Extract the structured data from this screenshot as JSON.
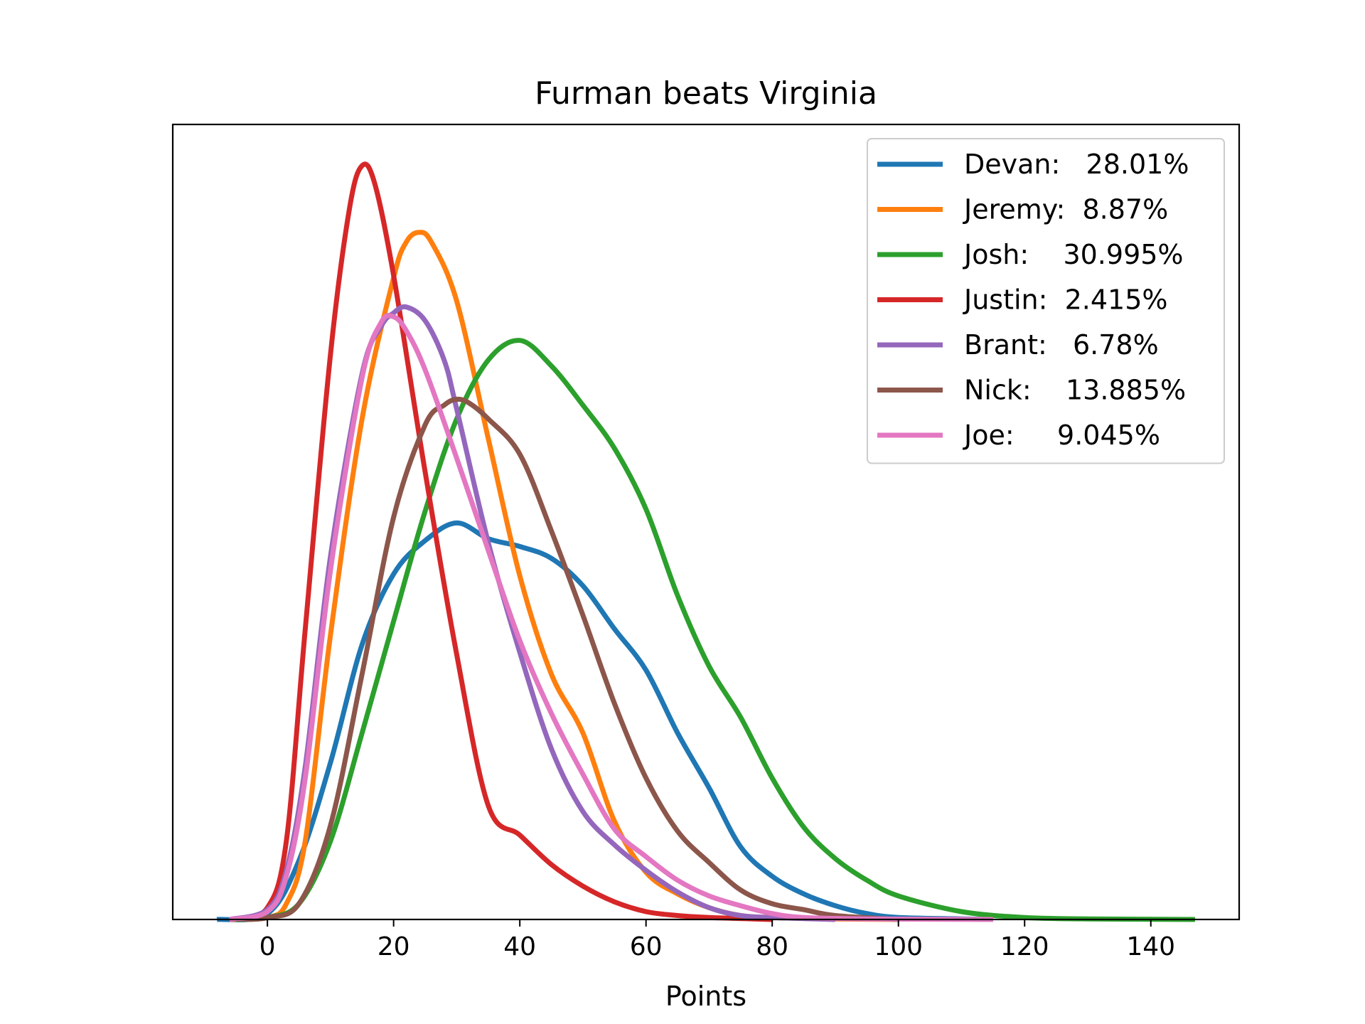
{
  "chart_data": {
    "type": "line",
    "title": "Furman beats Virginia",
    "xlabel": "Points",
    "ylabel": "",
    "xlim": [
      -15,
      154
    ],
    "ylim": [
      0,
      0.0405
    ],
    "x_ticks": [
      "0",
      "20",
      "40",
      "60",
      "80",
      "100",
      "120",
      "140"
    ],
    "y_ticks_shown": false,
    "grid": false,
    "legend_position": "top-right",
    "series": [
      {
        "name": "Devan:   28.01%",
        "color": "#1f77b4",
        "x": [
          -8,
          0,
          5,
          10,
          15,
          20,
          25,
          30,
          35,
          40,
          45,
          50,
          55,
          60,
          65,
          70,
          75,
          80,
          85,
          90,
          95,
          100,
          110,
          115
        ],
        "y": [
          0,
          0.0003,
          0.003,
          0.008,
          0.014,
          0.0176,
          0.0193,
          0.0202,
          0.0194,
          0.019,
          0.0184,
          0.017,
          0.0148,
          0.0127,
          0.0095,
          0.0067,
          0.0037,
          0.0022,
          0.0013,
          0.0007,
          0.0003,
          0.0001,
          3e-05,
          0
        ]
      },
      {
        "name": "Jeremy:  8.87%",
        "color": "#ff7f0e",
        "x": [
          -6,
          0,
          3,
          6,
          10,
          15,
          20,
          22,
          24,
          26,
          30,
          35,
          40,
          45,
          50,
          55,
          60,
          65,
          70,
          75,
          80,
          90,
          100
        ],
        "y": [
          0,
          0.0001,
          0.0008,
          0.004,
          0.0145,
          0.0255,
          0.0327,
          0.0345,
          0.035,
          0.0345,
          0.0315,
          0.0245,
          0.0175,
          0.0125,
          0.0095,
          0.005,
          0.0024,
          0.0013,
          0.0006,
          0.0002,
          0.0001,
          3e-05,
          0
        ]
      },
      {
        "name": "Josh:    30.995%",
        "color": "#2ca02c",
        "x": [
          -5,
          0,
          5,
          10,
          15,
          20,
          25,
          30,
          35,
          40,
          45,
          50,
          55,
          60,
          65,
          70,
          75,
          80,
          85,
          90,
          95,
          100,
          110,
          120,
          130,
          147
        ],
        "y": [
          0,
          0.0001,
          0.0008,
          0.004,
          0.0095,
          0.0152,
          0.0208,
          0.0255,
          0.0285,
          0.0295,
          0.0282,
          0.0262,
          0.024,
          0.0209,
          0.0165,
          0.0129,
          0.0103,
          0.0072,
          0.0047,
          0.0031,
          0.002,
          0.0012,
          0.0004,
          0.0001,
          3e-05,
          0
        ]
      },
      {
        "name": "Justin:  2.415%",
        "color": "#d62728",
        "x": [
          -5,
          0,
          3,
          6,
          10,
          13,
          15,
          17,
          20,
          25,
          30,
          35,
          40,
          45,
          50,
          55,
          60,
          65,
          70,
          80
        ],
        "y": [
          0,
          0.0006,
          0.004,
          0.0148,
          0.0288,
          0.0362,
          0.0384,
          0.0375,
          0.0328,
          0.0228,
          0.0135,
          0.0058,
          0.0043,
          0.0028,
          0.0017,
          0.0009,
          0.0004,
          0.0002,
          0.0001,
          0
        ]
      },
      {
        "name": "Brant:   6.78%",
        "color": "#9467bd",
        "x": [
          -6,
          0,
          3,
          6,
          10,
          15,
          18,
          20,
          22,
          25,
          28,
          30,
          35,
          40,
          45,
          50,
          55,
          60,
          65,
          70,
          75,
          80,
          90
        ],
        "y": [
          0,
          0.0005,
          0.0025,
          0.0078,
          0.0185,
          0.0278,
          0.0302,
          0.0309,
          0.0312,
          0.0305,
          0.0285,
          0.026,
          0.0192,
          0.0136,
          0.0087,
          0.0055,
          0.0038,
          0.0025,
          0.0014,
          0.0006,
          0.0002,
          0.0001,
          0
        ]
      },
      {
        "name": "Nick:    13.885%",
        "color": "#8c564b",
        "x": [
          -4,
          0,
          5,
          10,
          15,
          20,
          25,
          28,
          30,
          32,
          35,
          40,
          45,
          50,
          55,
          60,
          65,
          70,
          75,
          80,
          85,
          90,
          100
        ],
        "y": [
          0,
          0.0001,
          0.0008,
          0.0048,
          0.0125,
          0.0205,
          0.0252,
          0.0262,
          0.0265,
          0.0263,
          0.0255,
          0.0237,
          0.0198,
          0.0155,
          0.011,
          0.0072,
          0.0045,
          0.0029,
          0.0015,
          0.0008,
          0.0005,
          0.0002,
          0
        ]
      },
      {
        "name": "Joe:     9.045%",
        "color": "#e377c2",
        "x": [
          -6,
          0,
          3,
          6,
          10,
          15,
          18,
          20,
          22,
          25,
          30,
          35,
          40,
          45,
          50,
          55,
          60,
          65,
          70,
          75,
          80,
          85,
          95,
          115
        ],
        "y": [
          0,
          0.0004,
          0.0022,
          0.0072,
          0.0178,
          0.0276,
          0.0304,
          0.0307,
          0.03,
          0.028,
          0.0235,
          0.0188,
          0.0142,
          0.0105,
          0.0074,
          0.0046,
          0.0032,
          0.002,
          0.0012,
          0.0007,
          0.0003,
          0.0001,
          3e-05,
          0
        ]
      }
    ]
  }
}
